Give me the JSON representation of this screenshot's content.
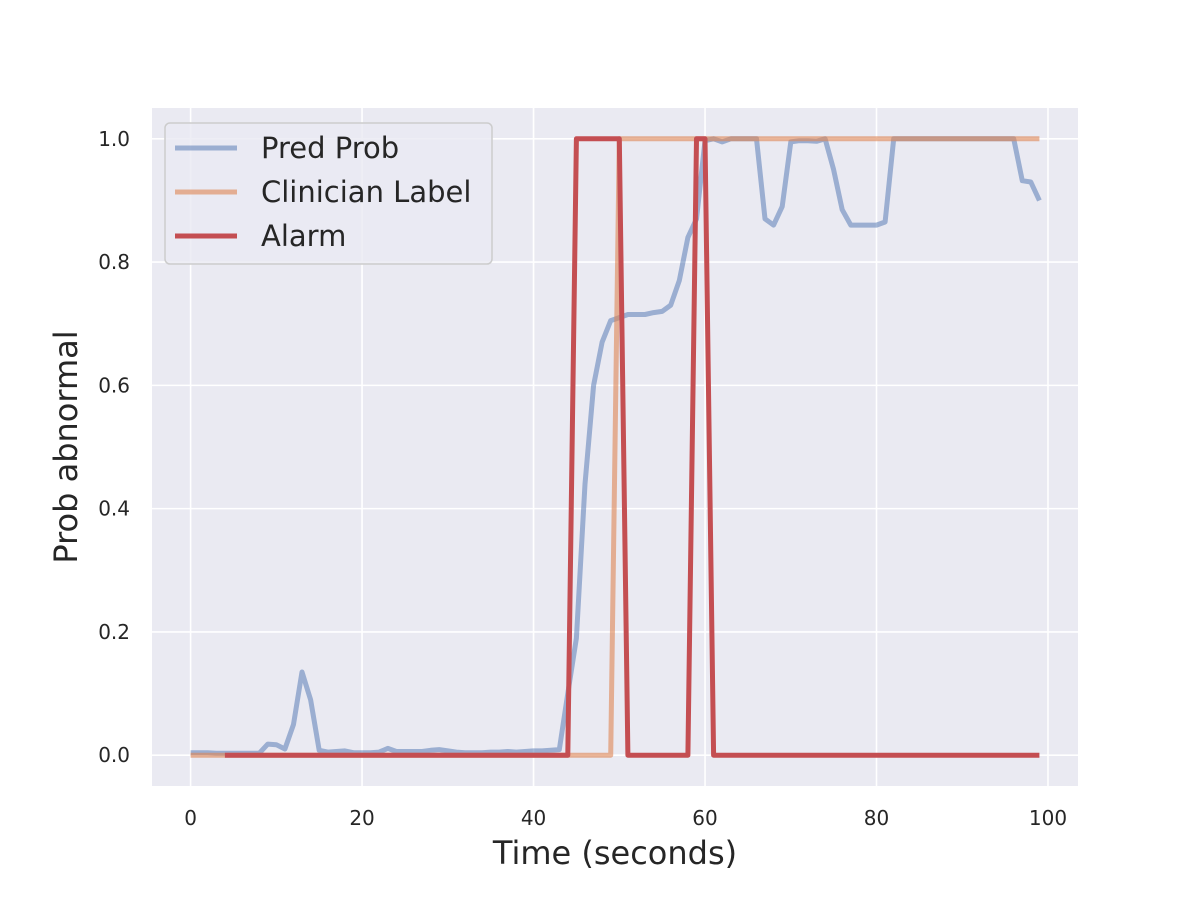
{
  "chart_data": {
    "type": "line",
    "title": "",
    "xlabel": "Time (seconds)",
    "ylabel": "Prob abnormal",
    "xlim": [
      -4.5,
      103.5
    ],
    "ylim": [
      -0.05,
      1.05
    ],
    "xticks": [
      0,
      20,
      40,
      60,
      80,
      100
    ],
    "yticks": [
      0.0,
      0.2,
      0.4,
      0.6,
      0.8,
      1.0
    ],
    "xtick_labels": [
      "0",
      "20",
      "40",
      "60",
      "80",
      "100"
    ],
    "ytick_labels": [
      "0.0",
      "0.2",
      "0.4",
      "0.6",
      "0.8",
      "1.0"
    ],
    "grid": true,
    "legend_position": "top-left",
    "series": [
      {
        "name": "Pred Prob",
        "color": "#4c72b0",
        "opacity": 0.5,
        "x": [
          0,
          1,
          2,
          3,
          4,
          5,
          6,
          7,
          8,
          9,
          10,
          11,
          12,
          13,
          14,
          15,
          16,
          17,
          18,
          19,
          20,
          21,
          22,
          23,
          24,
          25,
          26,
          27,
          28,
          29,
          30,
          31,
          32,
          33,
          34,
          35,
          36,
          37,
          38,
          39,
          40,
          41,
          42,
          43,
          44,
          45,
          46,
          47,
          48,
          49,
          50,
          51,
          52,
          53,
          54,
          55,
          56,
          57,
          58,
          59,
          60,
          61,
          62,
          63,
          64,
          65,
          66,
          67,
          68,
          69,
          70,
          71,
          72,
          73,
          74,
          75,
          76,
          77,
          78,
          79,
          80,
          81,
          82,
          83,
          84,
          85,
          86,
          87,
          88,
          89,
          90,
          91,
          92,
          93,
          94,
          95,
          96,
          97,
          98,
          99
        ],
        "y": [
          0.004,
          0.004,
          0.004,
          0.003,
          0.003,
          0.003,
          0.003,
          0.003,
          0.003,
          0.018,
          0.017,
          0.01,
          0.05,
          0.135,
          0.09,
          0.008,
          0.005,
          0.006,
          0.007,
          0.004,
          0.004,
          0.004,
          0.005,
          0.011,
          0.006,
          0.006,
          0.006,
          0.006,
          0.008,
          0.009,
          0.007,
          0.005,
          0.004,
          0.004,
          0.004,
          0.005,
          0.005,
          0.006,
          0.005,
          0.006,
          0.007,
          0.007,
          0.008,
          0.009,
          0.1,
          0.19,
          0.44,
          0.6,
          0.67,
          0.705,
          0.71,
          0.715,
          0.715,
          0.715,
          0.718,
          0.72,
          0.73,
          0.77,
          0.84,
          0.87,
          0.997,
          1.0,
          0.995,
          1.0,
          1.0,
          1.0,
          1.0,
          0.87,
          0.86,
          0.89,
          0.995,
          0.997,
          0.997,
          0.996,
          1.0,
          0.95,
          0.885,
          0.86,
          0.86,
          0.86,
          0.86,
          0.865,
          1.0,
          1.0,
          1.0,
          1.0,
          1.0,
          1.0,
          1.0,
          1.0,
          1.0,
          1.0,
          1.0,
          1.0,
          1.0,
          1.0,
          1.0,
          0.932,
          0.93,
          0.9
        ]
      },
      {
        "name": "Clinician Label",
        "color": "#dd8452",
        "opacity": 0.6,
        "x": [
          0,
          49,
          50,
          99
        ],
        "y": [
          0,
          0,
          1,
          1
        ]
      },
      {
        "name": "Alarm",
        "color": "#c44e52",
        "opacity": 1.0,
        "x": [
          4,
          44,
          45,
          50,
          51,
          58,
          59,
          60,
          61,
          99
        ],
        "y": [
          0,
          0,
          1,
          1,
          0,
          0,
          1,
          1,
          0,
          0
        ]
      }
    ]
  }
}
